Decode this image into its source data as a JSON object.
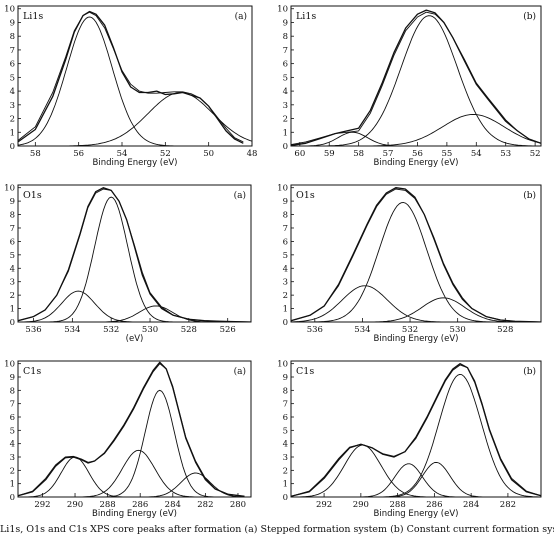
{
  "figure": {
    "caption": "Li1s, O1s and C1s XPS core peaks after formation (a) Stepped formation system (b) Constant current formation system"
  },
  "colors": {
    "line": "#111111",
    "background": "#ffffff"
  },
  "chart_data": [
    {
      "type": "line",
      "panel_label": "(a)",
      "title": "Li1s",
      "xlabel": "Binding Energy (eV)",
      "ylabel": "",
      "xlim": [
        58.8,
        48
      ],
      "ylim": [
        0,
        10.2
      ],
      "xticks": [
        58,
        56,
        54,
        52,
        50,
        48
      ],
      "yticks": [
        0,
        1,
        2,
        3,
        4,
        5,
        6,
        7,
        8,
        9,
        10
      ],
      "grid": false,
      "series": [
        {
          "role": "measured",
          "x": [
            58.8,
            58,
            57.2,
            56.6,
            56.2,
            55.8,
            55.5,
            55.2,
            54.8,
            54.4,
            54,
            53.6,
            53.2,
            52.8,
            52.4,
            52,
            51.6,
            51.2,
            50.8,
            50.4,
            50,
            49.6,
            49.2,
            48.8,
            48.4
          ],
          "y": [
            0.3,
            1.2,
            3.6,
            6.3,
            8.3,
            9.5,
            9.8,
            9.6,
            8.8,
            7.2,
            5.4,
            4.3,
            3.9,
            3.9,
            4.0,
            3.75,
            3.8,
            3.9,
            3.7,
            3.5,
            2.9,
            2.0,
            1.1,
            0.5,
            0.2
          ]
        },
        {
          "role": "fit",
          "x": [
            58.8,
            58,
            57.2,
            56.6,
            56.2,
            55.8,
            55.5,
            55.2,
            54.8,
            54.4,
            54,
            53.6,
            53.2,
            52.8,
            52.4,
            52,
            51.6,
            51.2,
            50.8,
            50.4,
            50,
            49.6,
            49.2,
            48.8,
            48.4
          ],
          "y": [
            0.4,
            1.4,
            3.9,
            6.5,
            8.4,
            9.5,
            9.75,
            9.5,
            8.6,
            7.1,
            5.5,
            4.5,
            4.0,
            3.85,
            3.85,
            3.9,
            3.95,
            3.95,
            3.8,
            3.5,
            2.9,
            2.1,
            1.3,
            0.6,
            0.3
          ]
        },
        {
          "role": "component",
          "center": 55.5,
          "height": 9.4,
          "sigma": 1.05,
          "x": [],
          "y": []
        },
        {
          "role": "component",
          "center": 51.3,
          "height": 3.9,
          "sigma": 1.5,
          "x": [],
          "y": []
        }
      ]
    },
    {
      "type": "line",
      "panel_label": "(b)",
      "title": "Li1s",
      "xlabel": "Binding Energy (eV)",
      "ylabel": "",
      "xlim": [
        60.3,
        51.8
      ],
      "ylim": [
        0,
        10.2
      ],
      "xticks": [
        60,
        59,
        58,
        57,
        56,
        55,
        54,
        53,
        52
      ],
      "yticks": [
        0,
        1,
        2,
        3,
        4,
        5,
        6,
        7,
        8,
        9,
        10
      ],
      "grid": false,
      "series": [
        {
          "role": "measured",
          "x": [
            60.3,
            59.8,
            59.3,
            58.8,
            58.4,
            58,
            57.6,
            57.2,
            56.8,
            56.4,
            56,
            55.7,
            55.4,
            55.1,
            54.8,
            54.4,
            54,
            53.6,
            53.3,
            53,
            52.6,
            52.2,
            51.8
          ],
          "y": [
            0.05,
            0.2,
            0.55,
            0.9,
            1.1,
            1.3,
            2.6,
            4.6,
            6.8,
            8.6,
            9.6,
            9.9,
            9.7,
            9.0,
            7.9,
            6.2,
            4.5,
            3.4,
            2.6,
            1.8,
            1.1,
            0.5,
            0.2
          ]
        },
        {
          "role": "fit",
          "x": [
            60.3,
            59.8,
            59.3,
            58.8,
            58.4,
            58,
            57.6,
            57.2,
            56.8,
            56.4,
            56,
            55.7,
            55.4,
            55.1,
            54.8,
            54.4,
            54,
            53.6,
            53.3,
            53,
            52.6,
            52.2,
            51.8
          ],
          "y": [
            0.1,
            0.3,
            0.6,
            0.9,
            1.0,
            1.1,
            2.4,
            4.4,
            6.6,
            8.4,
            9.4,
            9.75,
            9.6,
            9.0,
            7.9,
            6.3,
            4.6,
            3.5,
            2.7,
            1.9,
            1.1,
            0.5,
            0.2
          ]
        },
        {
          "role": "component",
          "center": 55.6,
          "height": 9.5,
          "sigma": 0.95,
          "x": [],
          "y": []
        },
        {
          "role": "component",
          "center": 54.1,
          "height": 2.3,
          "sigma": 1.05,
          "x": [],
          "y": []
        },
        {
          "role": "component",
          "center": 58.2,
          "height": 1.0,
          "sigma": 0.5,
          "x": [],
          "y": []
        }
      ]
    },
    {
      "type": "line",
      "panel_label": "(a)",
      "title": "O1s",
      "xlabel": "(eV)",
      "ylabel": "",
      "xlim": [
        536.8,
        524.8
      ],
      "ylim": [
        0,
        10.2
      ],
      "xticks": [
        536,
        534,
        532,
        530,
        528,
        526
      ],
      "yticks": [
        0,
        1,
        2,
        3,
        4,
        5,
        6,
        7,
        8,
        9,
        10
      ],
      "grid": false,
      "series": [
        {
          "role": "measured",
          "x": [
            536.8,
            536,
            535.4,
            534.8,
            534.2,
            533.6,
            533.2,
            532.8,
            532.4,
            532,
            531.6,
            531.2,
            530.8,
            530.4,
            530,
            529.4,
            528.8,
            528,
            527.2,
            526.4,
            525.6,
            524.8
          ],
          "y": [
            0.1,
            0.4,
            0.9,
            2.0,
            3.9,
            6.6,
            8.6,
            9.7,
            10.0,
            9.8,
            9.0,
            7.6,
            5.6,
            3.5,
            2.1,
            1.0,
            0.5,
            0.2,
            0.1,
            0.05,
            0.02,
            0.0
          ]
        },
        {
          "role": "fit",
          "x": [
            536.8,
            536,
            535.4,
            534.8,
            534.2,
            533.6,
            533.2,
            532.8,
            532.4,
            532,
            531.6,
            531.2,
            530.8,
            530.4,
            530,
            529.4,
            528.8,
            528,
            527.2,
            526.4,
            525.6,
            524.8
          ],
          "y": [
            0.1,
            0.4,
            0.9,
            2.0,
            3.8,
            6.5,
            8.5,
            9.6,
            9.9,
            9.8,
            9.0,
            7.6,
            5.7,
            3.7,
            2.2,
            1.1,
            0.5,
            0.2,
            0.1,
            0.05,
            0.02,
            0.0
          ]
        },
        {
          "role": "component",
          "center": 532.0,
          "height": 9.3,
          "sigma": 0.85,
          "x": [],
          "y": []
        },
        {
          "role": "component",
          "center": 533.7,
          "height": 2.3,
          "sigma": 0.85,
          "x": [],
          "y": []
        },
        {
          "role": "component",
          "center": 529.7,
          "height": 1.2,
          "sigma": 0.85,
          "x": [],
          "y": []
        }
      ]
    },
    {
      "type": "line",
      "panel_label": "(b)",
      "title": "O1s",
      "xlabel": "Binding Energy (eV)",
      "ylabel": "",
      "xlim": [
        537,
        526.5
      ],
      "ylim": [
        0,
        10.2
      ],
      "xticks": [
        536,
        534,
        532,
        530,
        528
      ],
      "yticks": [
        0,
        1,
        2,
        3,
        4,
        5,
        6,
        7,
        8,
        9,
        10
      ],
      "grid": false,
      "series": [
        {
          "role": "measured",
          "x": [
            537,
            536.2,
            535.6,
            535,
            534.4,
            533.8,
            533.4,
            533,
            532.6,
            532.2,
            531.8,
            531.4,
            531,
            530.6,
            530.2,
            529.8,
            529.4,
            528.8,
            528.2,
            527.6,
            527,
            526.5
          ],
          "y": [
            0.1,
            0.5,
            1.2,
            2.8,
            5.0,
            7.3,
            8.7,
            9.6,
            10.0,
            9.9,
            9.3,
            8.0,
            6.2,
            4.3,
            2.8,
            1.7,
            1.0,
            0.4,
            0.15,
            0.05,
            0.02,
            0.0
          ]
        },
        {
          "role": "fit",
          "x": [
            537,
            536.2,
            535.6,
            535,
            534.4,
            533.8,
            533.4,
            533,
            532.6,
            532.2,
            531.8,
            531.4,
            531,
            530.6,
            530.2,
            529.8,
            529.4,
            528.8,
            528.2,
            527.6,
            527,
            526.5
          ],
          "y": [
            0.1,
            0.5,
            1.2,
            2.7,
            4.9,
            7.2,
            8.6,
            9.5,
            9.9,
            9.8,
            9.2,
            8.0,
            6.3,
            4.4,
            2.9,
            1.8,
            1.0,
            0.4,
            0.15,
            0.05,
            0.02,
            0.0
          ]
        },
        {
          "role": "component",
          "center": 532.3,
          "height": 8.9,
          "sigma": 1.0,
          "x": [],
          "y": []
        },
        {
          "role": "component",
          "center": 533.9,
          "height": 2.7,
          "sigma": 0.95,
          "x": [],
          "y": []
        },
        {
          "role": "component",
          "center": 530.6,
          "height": 1.8,
          "sigma": 0.9,
          "x": [],
          "y": []
        }
      ]
    },
    {
      "type": "line",
      "panel_label": "(a)",
      "title": "C1s",
      "xlabel": "Binding Energy (eV)",
      "ylabel": "",
      "xlim": [
        293.5,
        279.2
      ],
      "ylim": [
        0,
        10.2
      ],
      "xticks": [
        292,
        290,
        288,
        286,
        284,
        282,
        280
      ],
      "yticks": [
        0,
        1,
        2,
        3,
        4,
        5,
        6,
        7,
        8,
        9,
        10
      ],
      "grid": false,
      "series": [
        {
          "role": "measured",
          "x": [
            293.5,
            292.6,
            291.8,
            291.2,
            290.6,
            290.1,
            289.6,
            289.2,
            288.8,
            288.2,
            287.6,
            287,
            286.4,
            285.8,
            285.2,
            284.8,
            284.4,
            284,
            283.6,
            283.2,
            282.6,
            282,
            281.4,
            280.6,
            279.6
          ],
          "y": [
            0.1,
            0.4,
            1.3,
            2.3,
            2.95,
            3.0,
            2.8,
            2.55,
            2.7,
            3.3,
            4.3,
            5.4,
            6.7,
            8.2,
            9.5,
            10.1,
            9.6,
            8.2,
            6.3,
            4.4,
            2.6,
            1.3,
            0.6,
            0.2,
            0.05
          ]
        },
        {
          "role": "fit",
          "x": [
            293.5,
            292.6,
            291.8,
            291.2,
            290.6,
            290.1,
            289.6,
            289.2,
            288.8,
            288.2,
            287.6,
            287,
            286.4,
            285.8,
            285.2,
            284.8,
            284.4,
            284,
            283.6,
            283.2,
            282.6,
            282,
            281.4,
            280.6,
            279.6
          ],
          "y": [
            0.1,
            0.45,
            1.4,
            2.4,
            3.0,
            3.05,
            2.85,
            2.6,
            2.7,
            3.25,
            4.2,
            5.3,
            6.6,
            8.1,
            9.4,
            10.0,
            9.6,
            8.3,
            6.4,
            4.5,
            2.7,
            1.4,
            0.6,
            0.2,
            0.05
          ]
        },
        {
          "role": "component",
          "center": 290.0,
          "height": 3.0,
          "sigma": 0.85,
          "x": [],
          "y": []
        },
        {
          "role": "component",
          "center": 286.1,
          "height": 3.5,
          "sigma": 1.0,
          "x": [],
          "y": []
        },
        {
          "role": "component",
          "center": 284.8,
          "height": 8.0,
          "sigma": 0.9,
          "x": [],
          "y": []
        },
        {
          "role": "component",
          "center": 282.6,
          "height": 1.8,
          "sigma": 0.9,
          "x": [],
          "y": []
        }
      ]
    },
    {
      "type": "line",
      "panel_label": "(b)",
      "title": "C1s",
      "xlabel": "Binding Energy (eV)",
      "ylabel": "",
      "xlim": [
        293.8,
        280.2
      ],
      "ylim": [
        0,
        10.2
      ],
      "xticks": [
        292,
        290,
        288,
        286,
        284,
        282
      ],
      "yticks": [
        0,
        1,
        2,
        3,
        4,
        5,
        6,
        7,
        8,
        9,
        10
      ],
      "grid": false,
      "series": [
        {
          "role": "measured",
          "x": [
            293.8,
            292.8,
            292,
            291.2,
            290.6,
            290,
            289.4,
            288.8,
            288.2,
            287.6,
            287,
            286.4,
            285.8,
            285.4,
            285,
            284.6,
            284.2,
            283.8,
            283.4,
            283,
            282.4,
            281.8,
            281,
            280.2
          ],
          "y": [
            0.05,
            0.4,
            1.4,
            2.8,
            3.7,
            3.95,
            3.7,
            3.2,
            3.0,
            3.4,
            4.5,
            6.0,
            7.7,
            8.8,
            9.6,
            10.0,
            9.7,
            8.6,
            6.9,
            5.0,
            2.8,
            1.3,
            0.4,
            0.1
          ]
        },
        {
          "role": "fit",
          "x": [
            293.8,
            292.8,
            292,
            291.2,
            290.6,
            290,
            289.4,
            288.8,
            288.2,
            287.6,
            287,
            286.4,
            285.8,
            285.4,
            285,
            284.6,
            284.2,
            283.8,
            283.4,
            283,
            282.4,
            281.8,
            281,
            280.2
          ],
          "y": [
            0.05,
            0.45,
            1.5,
            2.9,
            3.75,
            3.95,
            3.7,
            3.25,
            3.05,
            3.4,
            4.4,
            5.9,
            7.6,
            8.7,
            9.5,
            9.9,
            9.7,
            8.7,
            7.0,
            5.1,
            2.9,
            1.4,
            0.45,
            0.1
          ]
        },
        {
          "role": "component",
          "center": 289.9,
          "height": 3.9,
          "sigma": 1.0,
          "x": [],
          "y": []
        },
        {
          "role": "component",
          "center": 287.4,
          "height": 2.5,
          "sigma": 0.75,
          "x": [],
          "y": []
        },
        {
          "role": "component",
          "center": 285.9,
          "height": 2.6,
          "sigma": 0.75,
          "x": [],
          "y": []
        },
        {
          "role": "component",
          "center": 284.6,
          "height": 9.2,
          "sigma": 1.15,
          "x": [],
          "y": []
        }
      ]
    }
  ]
}
